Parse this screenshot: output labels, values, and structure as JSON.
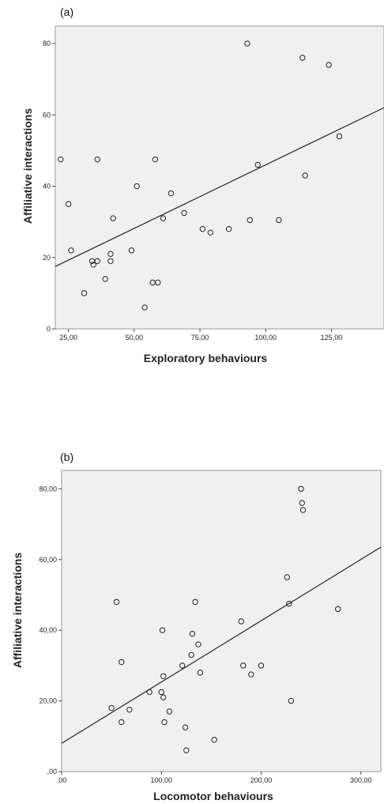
{
  "chart_data": [
    {
      "type": "scatter",
      "panel_label": "(a)",
      "xlabel": "Exploratory behaviours",
      "ylabel": "Affiliative interactions",
      "xlim": [
        20,
        145
      ],
      "ylim": [
        0,
        85
      ],
      "xticks": [
        25,
        50,
        75,
        100,
        125
      ],
      "xtick_labels": [
        "25,00",
        "50,00",
        "75,00",
        "100,00",
        "125,00"
      ],
      "yticks": [
        0,
        20,
        40,
        60,
        80
      ],
      "ytick_labels": [
        "0",
        "20",
        "40",
        "60",
        "80"
      ],
      "grid": false,
      "fit_line": {
        "x": [
          20,
          145
        ],
        "y": [
          17.5,
          62
        ]
      },
      "points": [
        {
          "x": 22,
          "y": 47.5
        },
        {
          "x": 25,
          "y": 35
        },
        {
          "x": 26,
          "y": 22
        },
        {
          "x": 31,
          "y": 10
        },
        {
          "x": 34,
          "y": 19
        },
        {
          "x": 34.5,
          "y": 18
        },
        {
          "x": 36,
          "y": 19
        },
        {
          "x": 36,
          "y": 47.5
        },
        {
          "x": 39,
          "y": 14
        },
        {
          "x": 41,
          "y": 21
        },
        {
          "x": 41,
          "y": 19
        },
        {
          "x": 42,
          "y": 31
        },
        {
          "x": 49,
          "y": 22
        },
        {
          "x": 51,
          "y": 40
        },
        {
          "x": 54,
          "y": 6
        },
        {
          "x": 57,
          "y": 13
        },
        {
          "x": 58,
          "y": 47.5
        },
        {
          "x": 59,
          "y": 13
        },
        {
          "x": 61,
          "y": 31
        },
        {
          "x": 64,
          "y": 38
        },
        {
          "x": 69,
          "y": 32.5
        },
        {
          "x": 76,
          "y": 28
        },
        {
          "x": 79,
          "y": 27
        },
        {
          "x": 86,
          "y": 28
        },
        {
          "x": 93,
          "y": 80
        },
        {
          "x": 94,
          "y": 30.5
        },
        {
          "x": 97,
          "y": 46
        },
        {
          "x": 105,
          "y": 30.5
        },
        {
          "x": 114,
          "y": 76
        },
        {
          "x": 115,
          "y": 43
        },
        {
          "x": 124,
          "y": 74
        },
        {
          "x": 128,
          "y": 54
        }
      ]
    },
    {
      "type": "scatter",
      "panel_label": "(b)",
      "xlabel": "Locomotor behaviours",
      "ylabel": "Affiliative interactions",
      "xlim": [
        0,
        320
      ],
      "ylim": [
        0,
        85
      ],
      "xticks": [
        0,
        100,
        200,
        300
      ],
      "xtick_labels": [
        ",00",
        "100,00",
        "200,00",
        "300,00"
      ],
      "yticks": [
        0,
        20,
        40,
        60,
        80
      ],
      "ytick_labels": [
        ",00",
        "20,00",
        "40,00",
        "60,00",
        "80,00"
      ],
      "grid": false,
      "fit_line": {
        "x": [
          0,
          320
        ],
        "y": [
          8,
          63.5
        ]
      },
      "points": [
        {
          "x": 50,
          "y": 18
        },
        {
          "x": 55,
          "y": 48
        },
        {
          "x": 60,
          "y": 31
        },
        {
          "x": 60,
          "y": 14
        },
        {
          "x": 68,
          "y": 17.5
        },
        {
          "x": 88,
          "y": 22.5
        },
        {
          "x": 100,
          "y": 22.5
        },
        {
          "x": 101,
          "y": 40
        },
        {
          "x": 102,
          "y": 27
        },
        {
          "x": 102,
          "y": 21
        },
        {
          "x": 103,
          "y": 14
        },
        {
          "x": 108,
          "y": 17
        },
        {
          "x": 121,
          "y": 30
        },
        {
          "x": 124,
          "y": 12.5
        },
        {
          "x": 125,
          "y": 6
        },
        {
          "x": 130,
          "y": 33
        },
        {
          "x": 131,
          "y": 39
        },
        {
          "x": 134,
          "y": 48
        },
        {
          "x": 137,
          "y": 36
        },
        {
          "x": 139,
          "y": 28
        },
        {
          "x": 153,
          "y": 9
        },
        {
          "x": 180,
          "y": 42.5
        },
        {
          "x": 182,
          "y": 30
        },
        {
          "x": 190,
          "y": 27.5
        },
        {
          "x": 200,
          "y": 30
        },
        {
          "x": 226,
          "y": 55
        },
        {
          "x": 228,
          "y": 47.5
        },
        {
          "x": 230,
          "y": 20
        },
        {
          "x": 240,
          "y": 80
        },
        {
          "x": 241,
          "y": 76
        },
        {
          "x": 242,
          "y": 74
        },
        {
          "x": 277,
          "y": 46
        }
      ]
    }
  ]
}
